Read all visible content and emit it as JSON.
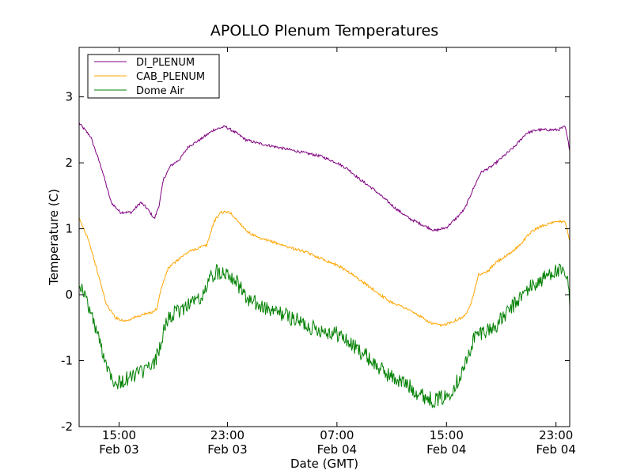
{
  "chart_data": {
    "type": "line",
    "title": "APOLLO Plenum Temperatures",
    "xlabel": "Date (GMT)",
    "ylabel": "Temperature (C)",
    "ylim": [
      -2,
      3.75
    ],
    "xlim_hours": [
      0,
      21.5
    ],
    "grid": false,
    "legend_position": "upper-left",
    "yticks": [
      {
        "value": 3,
        "label": "3"
      },
      {
        "value": 2,
        "label": "2"
      },
      {
        "value": 1,
        "label": "1"
      },
      {
        "value": 0,
        "label": "0"
      },
      {
        "value": -1,
        "label": "-1"
      },
      {
        "value": -2,
        "label": "-2"
      }
    ],
    "xticks": [
      {
        "hour": 1.75,
        "time": "15:00",
        "date": "Feb 03"
      },
      {
        "hour": 6.5,
        "time": "23:00",
        "date": "Feb 03"
      },
      {
        "hour": 11.3,
        "time": "07:00",
        "date": "Feb 04"
      },
      {
        "hour": 16.1,
        "time": "15:00",
        "date": "Feb 04"
      },
      {
        "hour": 20.9,
        "time": "23:00",
        "date": "Feb 04"
      }
    ],
    "series": [
      {
        "name": "DI_PLENUM",
        "color": "#800080",
        "noise": 0.02,
        "points": [
          [
            0,
            2.6
          ],
          [
            0.5,
            2.4
          ],
          [
            1.0,
            1.9
          ],
          [
            1.4,
            1.4
          ],
          [
            1.8,
            1.25
          ],
          [
            2.3,
            1.25
          ],
          [
            2.7,
            1.4
          ],
          [
            3.0,
            1.3
          ],
          [
            3.3,
            1.15
          ],
          [
            3.5,
            1.35
          ],
          [
            3.7,
            1.75
          ],
          [
            4.0,
            1.95
          ],
          [
            4.4,
            2.05
          ],
          [
            4.8,
            2.25
          ],
          [
            5.3,
            2.35
          ],
          [
            5.9,
            2.5
          ],
          [
            6.4,
            2.55
          ],
          [
            6.9,
            2.45
          ],
          [
            7.3,
            2.35
          ],
          [
            7.8,
            2.3
          ],
          [
            8.5,
            2.25
          ],
          [
            9.2,
            2.2
          ],
          [
            9.9,
            2.15
          ],
          [
            10.6,
            2.1
          ],
          [
            11.3,
            2.0
          ],
          [
            11.8,
            1.9
          ],
          [
            12.3,
            1.75
          ],
          [
            12.9,
            1.6
          ],
          [
            13.4,
            1.45
          ],
          [
            13.9,
            1.3
          ],
          [
            14.5,
            1.15
          ],
          [
            15.1,
            1.05
          ],
          [
            15.6,
            0.97
          ],
          [
            16.1,
            1.02
          ],
          [
            16.5,
            1.15
          ],
          [
            16.9,
            1.3
          ],
          [
            17.2,
            1.55
          ],
          [
            17.6,
            1.85
          ],
          [
            18.1,
            1.95
          ],
          [
            18.6,
            2.1
          ],
          [
            19.1,
            2.25
          ],
          [
            19.6,
            2.45
          ],
          [
            20.1,
            2.5
          ],
          [
            20.6,
            2.5
          ],
          [
            21.0,
            2.5
          ],
          [
            21.3,
            2.55
          ],
          [
            21.5,
            2.2
          ]
        ]
      },
      {
        "name": "CAB_PLENUM",
        "color": "#ffa500",
        "noise": 0.02,
        "points": [
          [
            0,
            1.15
          ],
          [
            0.4,
            0.85
          ],
          [
            0.8,
            0.35
          ],
          [
            1.2,
            -0.15
          ],
          [
            1.6,
            -0.35
          ],
          [
            2.0,
            -0.4
          ],
          [
            2.4,
            -0.35
          ],
          [
            2.8,
            -0.3
          ],
          [
            3.1,
            -0.28
          ],
          [
            3.4,
            -0.22
          ],
          [
            3.6,
            0.1
          ],
          [
            3.9,
            0.4
          ],
          [
            4.4,
            0.55
          ],
          [
            4.8,
            0.65
          ],
          [
            5.3,
            0.72
          ],
          [
            5.6,
            0.75
          ],
          [
            5.9,
            1.1
          ],
          [
            6.2,
            1.25
          ],
          [
            6.6,
            1.25
          ],
          [
            7.0,
            1.1
          ],
          [
            7.4,
            0.95
          ],
          [
            7.9,
            0.85
          ],
          [
            8.5,
            0.8
          ],
          [
            9.2,
            0.72
          ],
          [
            9.9,
            0.65
          ],
          [
            10.6,
            0.55
          ],
          [
            11.3,
            0.45
          ],
          [
            11.8,
            0.35
          ],
          [
            12.4,
            0.2
          ],
          [
            13.0,
            0.05
          ],
          [
            13.6,
            -0.1
          ],
          [
            14.3,
            -0.2
          ],
          [
            14.9,
            -0.32
          ],
          [
            15.4,
            -0.43
          ],
          [
            15.9,
            -0.47
          ],
          [
            16.4,
            -0.4
          ],
          [
            16.9,
            -0.33
          ],
          [
            17.2,
            -0.1
          ],
          [
            17.5,
            0.3
          ],
          [
            17.9,
            0.35
          ],
          [
            18.3,
            0.5
          ],
          [
            18.8,
            0.6
          ],
          [
            19.3,
            0.75
          ],
          [
            19.8,
            0.95
          ],
          [
            20.3,
            1.05
          ],
          [
            20.9,
            1.1
          ],
          [
            21.3,
            1.12
          ],
          [
            21.5,
            0.8
          ]
        ]
      },
      {
        "name": "Dome Air",
        "color": "#008000",
        "noise": 0.12,
        "points": [
          [
            0,
            0.2
          ],
          [
            0.4,
            -0.15
          ],
          [
            0.8,
            -0.6
          ],
          [
            1.2,
            -1.05
          ],
          [
            1.6,
            -1.35
          ],
          [
            2.0,
            -1.3
          ],
          [
            2.5,
            -1.2
          ],
          [
            2.9,
            -1.15
          ],
          [
            3.3,
            -1.05
          ],
          [
            3.6,
            -0.7
          ],
          [
            3.9,
            -0.35
          ],
          [
            4.4,
            -0.25
          ],
          [
            4.9,
            -0.1
          ],
          [
            5.4,
            -0.05
          ],
          [
            5.8,
            0.3
          ],
          [
            6.1,
            0.35
          ],
          [
            6.5,
            0.35
          ],
          [
            6.9,
            0.2
          ],
          [
            7.3,
            -0.05
          ],
          [
            7.8,
            -0.15
          ],
          [
            8.4,
            -0.25
          ],
          [
            9.0,
            -0.3
          ],
          [
            9.6,
            -0.4
          ],
          [
            10.2,
            -0.5
          ],
          [
            10.8,
            -0.55
          ],
          [
            11.4,
            -0.6
          ],
          [
            11.9,
            -0.75
          ],
          [
            12.5,
            -0.9
          ],
          [
            13.1,
            -1.1
          ],
          [
            13.7,
            -1.25
          ],
          [
            14.3,
            -1.35
          ],
          [
            14.9,
            -1.5
          ],
          [
            15.5,
            -1.6
          ],
          [
            16.1,
            -1.55
          ],
          [
            16.6,
            -1.3
          ],
          [
            17.0,
            -1.0
          ],
          [
            17.3,
            -0.65
          ],
          [
            17.7,
            -0.55
          ],
          [
            18.2,
            -0.5
          ],
          [
            18.7,
            -0.3
          ],
          [
            19.2,
            -0.1
          ],
          [
            19.7,
            0.1
          ],
          [
            20.2,
            0.2
          ],
          [
            20.7,
            0.35
          ],
          [
            21.1,
            0.35
          ],
          [
            21.4,
            0.25
          ],
          [
            21.5,
            -0.15
          ]
        ]
      }
    ]
  }
}
